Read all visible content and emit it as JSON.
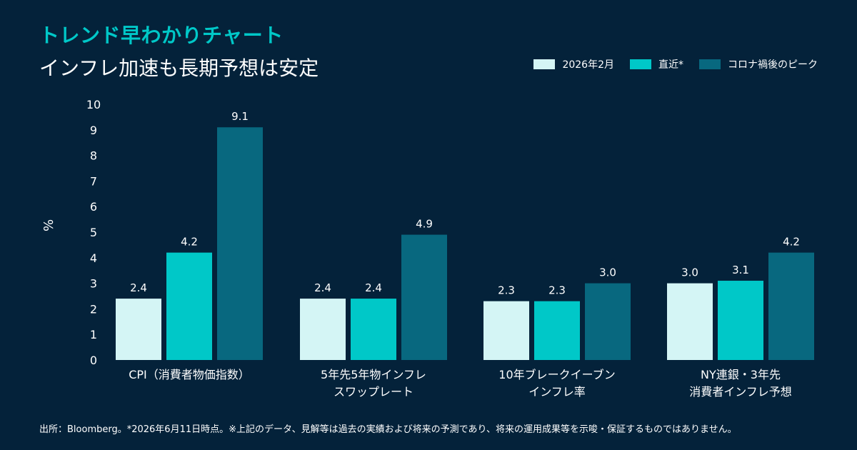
{
  "header": {
    "title": "トレンド早わかりチャート",
    "subtitle": "インフレ加速も長期予想は安定"
  },
  "footer": {
    "note": "出所：Bloomberg。*2026年6月11日時点。※上記のデータ、見解等は過去の実績および将来の予測であり、将来の運用成果等を示唆・保証するものではありません。"
  },
  "colors": {
    "background": "#04223a",
    "series_1": "#d4f5f5",
    "series_2": "#00c8c8",
    "series_3": "#08687f",
    "title_accent": "#00c8c8"
  },
  "chart_data": {
    "type": "bar",
    "ylabel": "%",
    "ylim": [
      0,
      10
    ],
    "yticks": [
      0,
      1,
      2,
      3,
      4,
      5,
      6,
      7,
      8,
      9,
      10
    ],
    "grid": false,
    "legend_position": "top-right",
    "categories": [
      [
        "CPI（消費者物価指数）"
      ],
      [
        "5年先5年物インフレ",
        "スワップレート"
      ],
      [
        "10年ブレークイーブン",
        "インフレ率"
      ],
      [
        "NY連銀・3年先",
        "消費者インフレ予想"
      ]
    ],
    "series": [
      {
        "name": "2026年2月",
        "values": [
          2.4,
          2.4,
          2.3,
          3.0
        ]
      },
      {
        "name": "直近*",
        "values": [
          4.2,
          2.4,
          2.3,
          3.1
        ]
      },
      {
        "name": "コロナ禍後のピーク",
        "values": [
          9.1,
          4.9,
          3.0,
          4.2
        ]
      }
    ]
  }
}
